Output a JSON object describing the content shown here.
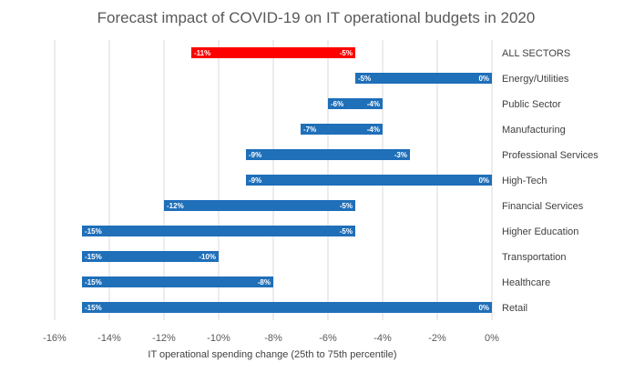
{
  "chart_data": {
    "type": "bar",
    "orientation": "horizontal-floating",
    "title": "Forecast impact of COVID-19 on IT operational budgets in 2020",
    "xlabel": "IT operational spending change (25th to 75th percentile)",
    "ylabel": "",
    "xlim": [
      -16,
      0
    ],
    "x_ticks": [
      -16,
      -14,
      -12,
      -10,
      -8,
      -6,
      -4,
      -2,
      0
    ],
    "x_tick_labels": [
      "-16%",
      "-14%",
      "-12%",
      "-10%",
      "-8%",
      "-6%",
      "-4%",
      "-2%",
      "0%"
    ],
    "grid": "vertical",
    "categories": [
      "ALL SECTORS",
      "Energy/Utilities",
      "Public Sector",
      "Manufacturing",
      "Professional Services",
      "High-Tech",
      "Financial Services",
      "Higher Education",
      "Transportation",
      "Healthcare",
      "Retail"
    ],
    "series": [
      {
        "name": "25th percentile",
        "values": [
          -11,
          -5,
          -6,
          -7,
          -9,
          -9,
          -12,
          -15,
          -15,
          -15,
          -15
        ]
      },
      {
        "name": "75th percentile",
        "values": [
          -5,
          0,
          -4,
          -4,
          -3,
          0,
          -5,
          -5,
          -10,
          -8,
          0
        ]
      }
    ],
    "low_labels": [
      "-11%",
      "-5%",
      "-6%",
      "-7%",
      "-9%",
      "-9%",
      "-12%",
      "-15%",
      "-15%",
      "-15%",
      "-15%"
    ],
    "high_labels": [
      "-5%",
      "0%",
      "-4%",
      "-4%",
      "-3%",
      "0%",
      "-5%",
      "-5%",
      "-10%",
      "-8%",
      "0%"
    ],
    "highlight_category": "ALL SECTORS",
    "colors": {
      "highlight": "#ff0000",
      "bar": "#1f6fb9",
      "grid": "#d9d9d9",
      "text": "#595959"
    }
  }
}
